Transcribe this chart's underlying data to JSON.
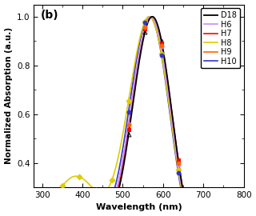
{
  "title": "(b)",
  "xlabel": "Wavelength (nm)",
  "ylabel": "Normalized Absorption (a.u.)",
  "xlim": [
    280,
    800
  ],
  "ylim": [
    0.3,
    1.05
  ],
  "xticks": [
    300,
    400,
    500,
    600,
    700,
    800
  ],
  "yticks": [
    0.4,
    0.6,
    0.8,
    1.0
  ],
  "series": [
    {
      "label": "D18",
      "color": "#000000",
      "marker": "^",
      "markersize": 3.5,
      "lw": 1.3
    },
    {
      "label": "H6",
      "color": "#CC88FF",
      "marker": "o",
      "markersize": 3.5,
      "lw": 1.2
    },
    {
      "label": "H7",
      "color": "#FF0000",
      "marker": "s",
      "markersize": 3.5,
      "lw": 1.2
    },
    {
      "label": "H8",
      "color": "#DDCC00",
      "marker": "D",
      "markersize": 3.5,
      "lw": 1.2
    },
    {
      "label": "H9",
      "color": "#FF6600",
      "marker": "o",
      "markersize": 3.5,
      "lw": 1.2
    },
    {
      "label": "H10",
      "color": "#3333CC",
      "marker": "o",
      "markersize": 3.5,
      "lw": 1.2
    }
  ],
  "background_color": "#ffffff",
  "figsize": [
    3.2,
    2.7
  ],
  "dpi": 100
}
